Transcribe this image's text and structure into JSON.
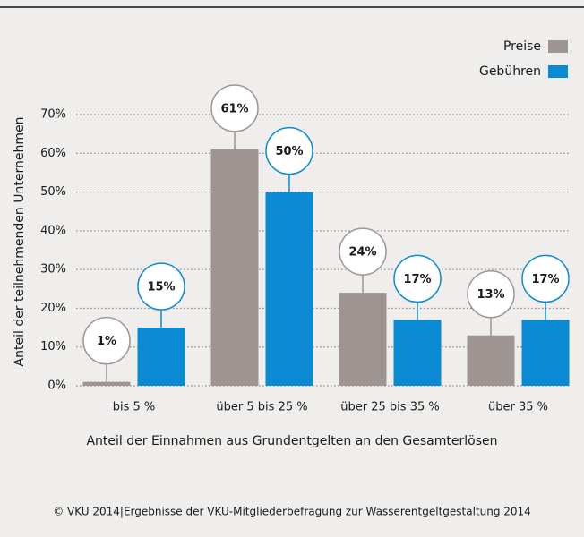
{
  "chart_data": {
    "type": "bar",
    "y_label": "Anteil der teilnehmenden Unternehmen",
    "x_label": "Anteil der Einnahmen aus Grundentgelten an den Gesamterlösen",
    "source": "© VKU 2014|Ergebnisse der VKU-Mitgliederbefragung zur Wasserentgeltgestaltung 2014",
    "categories": [
      "bis 5 %",
      "über 5 bis 25 %",
      "über 25 bis 35 %",
      "über 35 %"
    ],
    "series": [
      {
        "name": "Preise",
        "color": "#9e9593",
        "values": [
          1,
          61,
          24,
          13
        ],
        "value_labels": [
          "1%",
          "61%",
          "24%",
          "13%"
        ]
      },
      {
        "name": "Gebühren",
        "color": "#0a8ad2",
        "values": [
          15,
          50,
          17,
          17
        ],
        "value_labels": [
          "15%",
          "50%",
          "17%",
          "17%"
        ]
      }
    ],
    "ylim": [
      0,
      70
    ],
    "yticks": [
      {
        "value": 0,
        "label": "0%"
      },
      {
        "value": 10,
        "label": "10%"
      },
      {
        "value": 20,
        "label": "20%"
      },
      {
        "value": 30,
        "label": "30%"
      },
      {
        "value": 40,
        "label": "40%"
      },
      {
        "value": 50,
        "label": "50%"
      },
      {
        "value": 60,
        "label": "60%"
      },
      {
        "value": 70,
        "label": "70%"
      }
    ],
    "grid": true,
    "legend": "top-right"
  }
}
